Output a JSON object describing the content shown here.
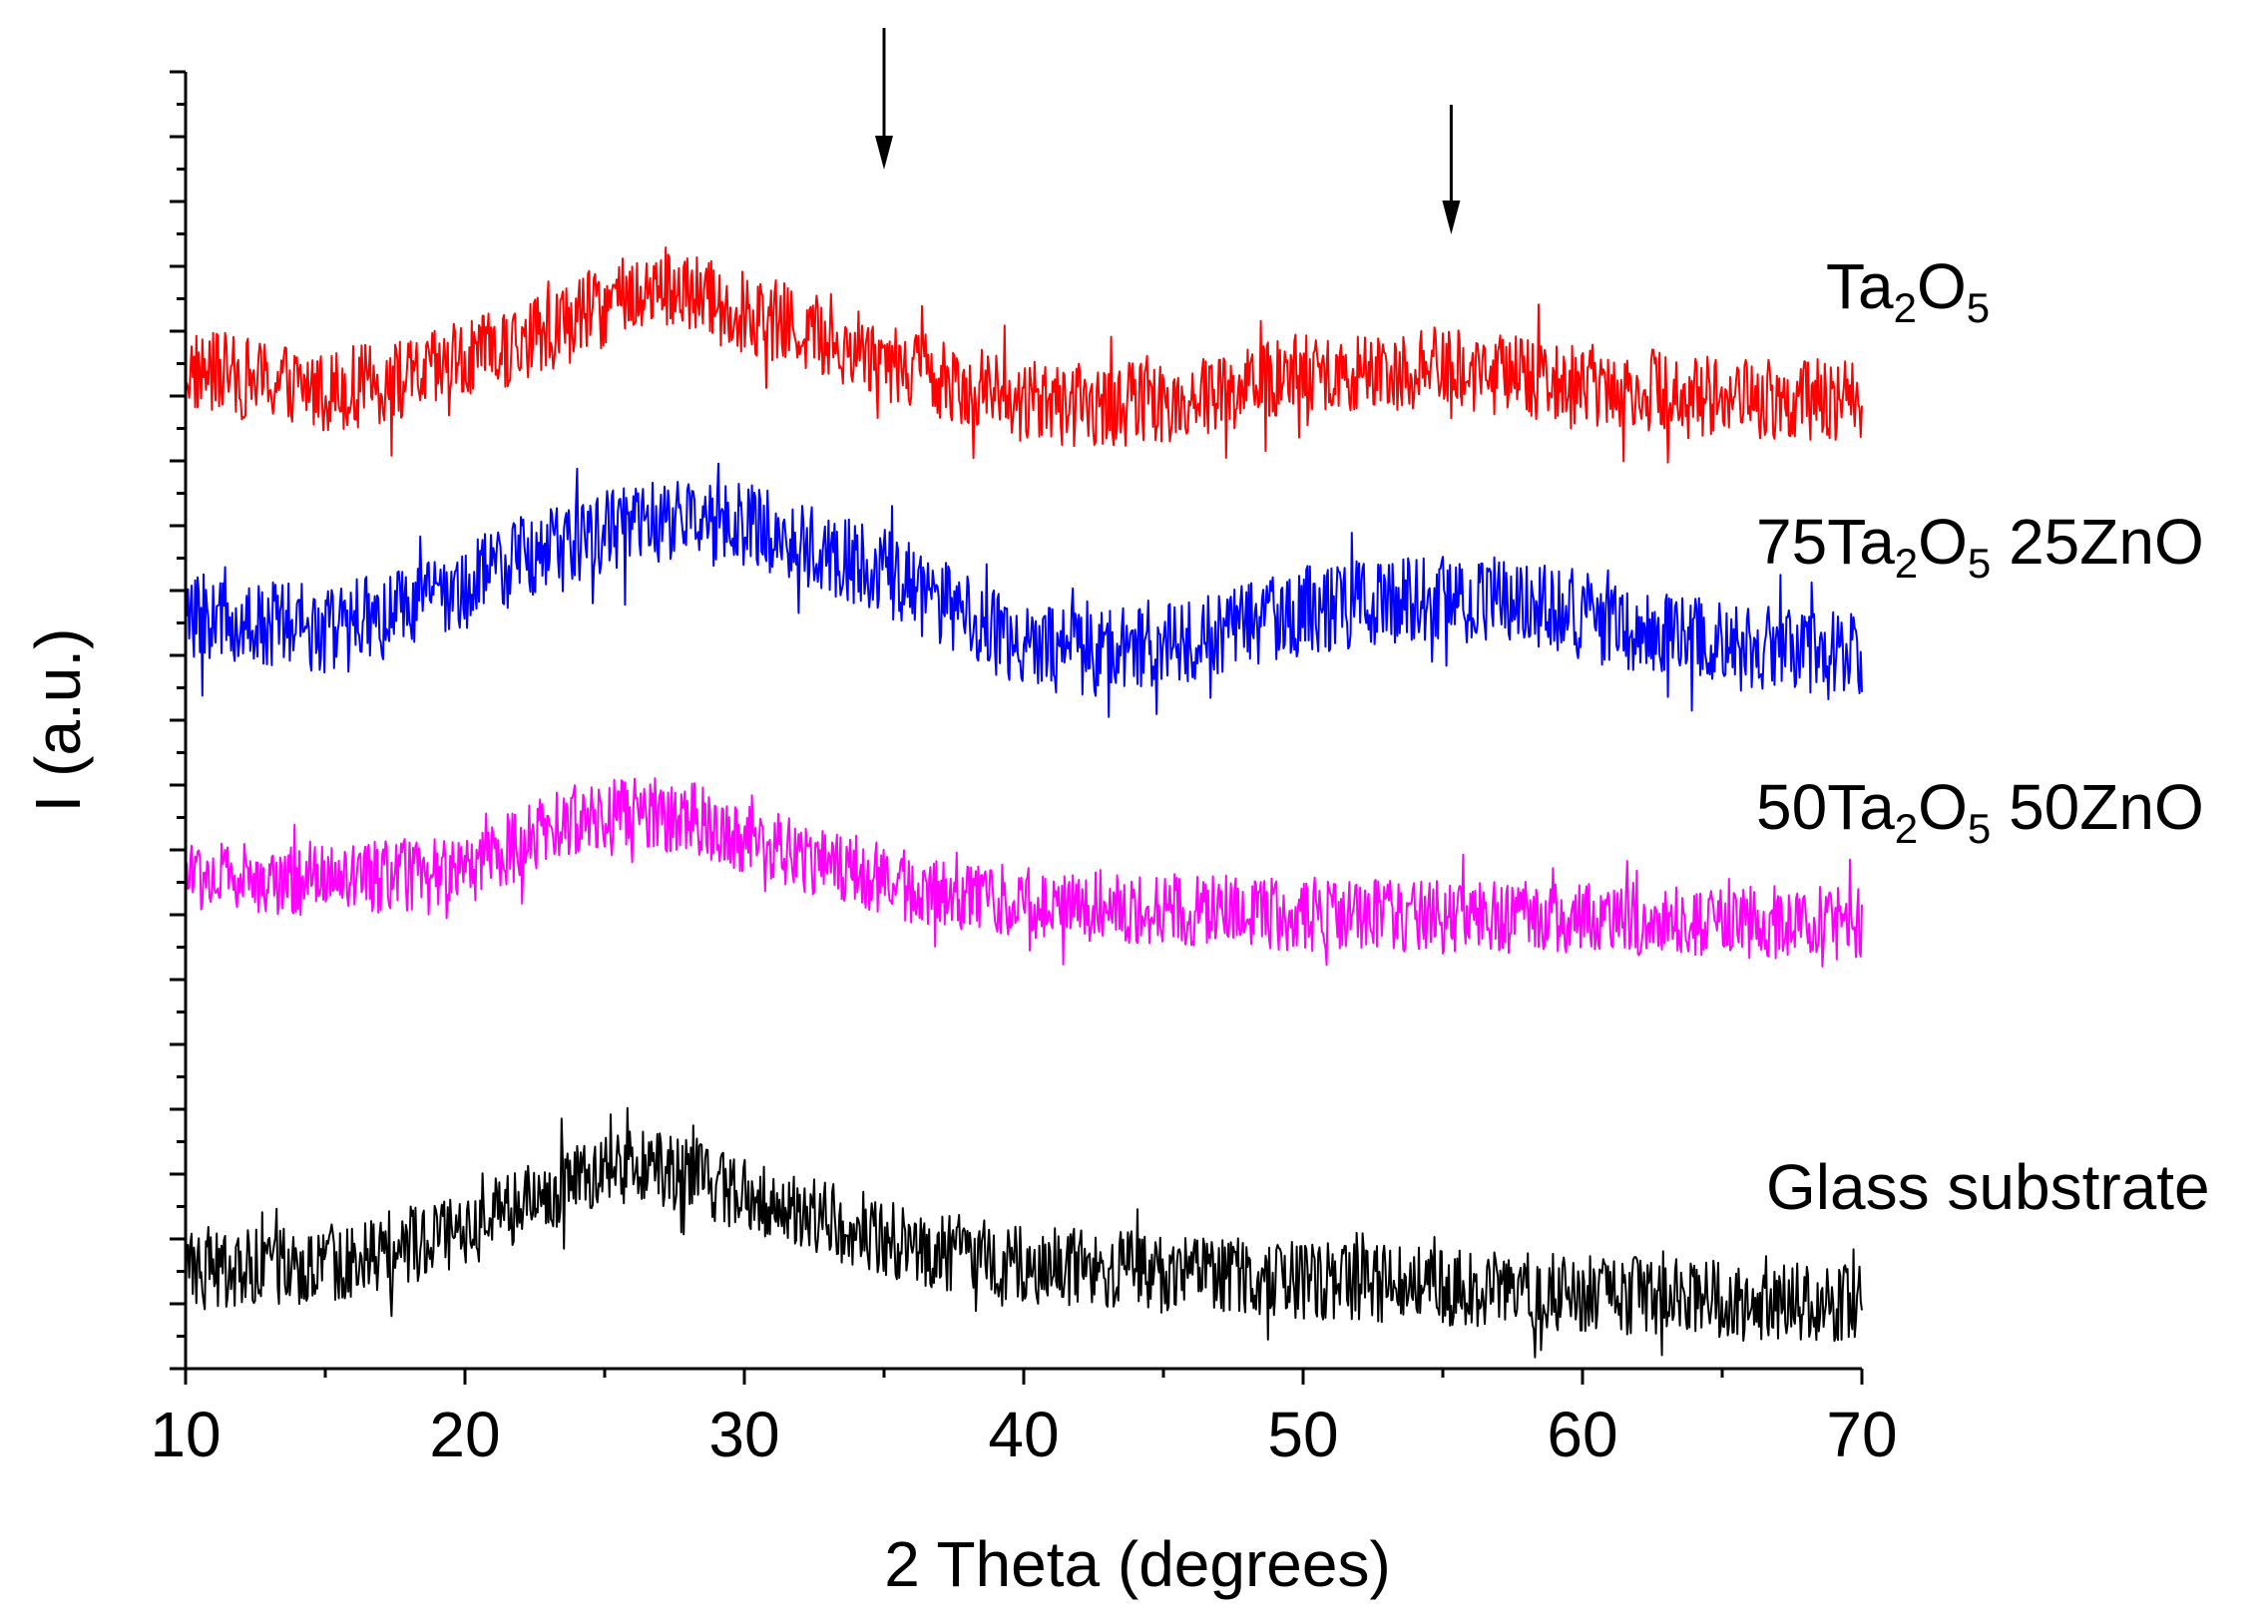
{
  "chart_data": {
    "type": "line",
    "title": "",
    "xlabel": "2 Theta (degrees)",
    "ylabel": "I (a.u.)",
    "xlim": [
      10,
      70
    ],
    "ylim": [
      0,
      100
    ],
    "x_ticks": [
      10,
      20,
      30,
      40,
      50,
      60,
      70
    ],
    "y_ticks_shown": false,
    "grid": false,
    "legend": "none (labels placed to the right of each curve)",
    "series": [
      {
        "name": "Ta2O5",
        "label_parts": [
          [
            "Ta",
            "base"
          ],
          [
            "2",
            "sub"
          ],
          [
            "O",
            "base"
          ],
          [
            "5",
            "sub"
          ]
        ],
        "color": "#ff0000",
        "baseline_offset": 74,
        "noise_amplitude": 3.2,
        "x": [
          10,
          15,
          18,
          22,
          25,
          27,
          30,
          33,
          35,
          37,
          40,
          43,
          46,
          50,
          55,
          60,
          65,
          70
        ],
        "y": [
          3.0,
          1.5,
          2.2,
          5.0,
          8.0,
          9.5,
          7.5,
          5.5,
          4.0,
          2.5,
          0.5,
          0.2,
          0.8,
          2.6,
          3.2,
          2.0,
          1.0,
          0.5
        ],
        "marked_peaks_2theta": [
          35,
          55.3
        ]
      },
      {
        "name": "75Ta2O5 25ZnO",
        "label_parts": [
          [
            "75Ta",
            "base"
          ],
          [
            "2",
            "sub"
          ],
          [
            "O",
            "base"
          ],
          [
            "5",
            "sub"
          ],
          [
            " 25ZnO",
            "base"
          ]
        ],
        "color": "#0000ff",
        "baseline_offset": 54,
        "noise_amplitude": 3.4,
        "x": [
          10,
          15,
          19,
          22,
          25,
          28,
          30,
          33,
          35,
          37,
          40,
          43,
          46,
          50,
          55,
          58,
          60,
          63,
          66,
          70
        ],
        "y": [
          4.0,
          3.0,
          5.0,
          8.5,
          10.5,
          11.5,
          11.0,
          9.0,
          7.5,
          5.0,
          1.5,
          1.2,
          2.5,
          4.5,
          5.5,
          5.0,
          4.0,
          2.5,
          1.5,
          0.8
        ],
        "marked_peaks_2theta": []
      },
      {
        "name": "50Ta2O5 50ZnO",
        "label_parts": [
          [
            "50Ta",
            "base"
          ],
          [
            "2",
            "sub"
          ],
          [
            "O",
            "base"
          ],
          [
            "5",
            "sub"
          ],
          [
            " 50ZnO",
            "base"
          ]
        ],
        "color": "#ff00ff",
        "baseline_offset": 34,
        "noise_amplitude": 2.8,
        "x": [
          10,
          15,
          20,
          23,
          25,
          28,
          30,
          33,
          36,
          40,
          45,
          50,
          55,
          60,
          65,
          70
        ],
        "y": [
          4.0,
          3.5,
          4.5,
          7.5,
          9.0,
          8.5,
          7.0,
          5.0,
          3.0,
          2.0,
          1.5,
          1.0,
          0.8,
          0.8,
          0.5,
          0.3
        ],
        "marked_peaks_2theta": []
      },
      {
        "name": "Glass substrate",
        "label_parts": [
          [
            "Glass substrate",
            "base"
          ]
        ],
        "color": "#000000",
        "baseline_offset": 4,
        "noise_amplitude": 3.0,
        "x": [
          10,
          15,
          19,
          22,
          24,
          26,
          28,
          30,
          33,
          36,
          40,
          45,
          50,
          55,
          60,
          65,
          70
        ],
        "y": [
          3.5,
          4.0,
          6.0,
          8.5,
          10.5,
          11.5,
          11.0,
          9.5,
          7.5,
          5.5,
          4.0,
          3.5,
          2.8,
          2.3,
          1.8,
          1.3,
          1.0
        ],
        "marked_peaks_2theta": []
      }
    ],
    "annotations": [
      {
        "type": "arrow",
        "x": 35,
        "direction": "down",
        "points_to": "Ta2O5"
      },
      {
        "type": "arrow",
        "x": 55.3,
        "direction": "down",
        "points_to": "Ta2O5"
      }
    ]
  }
}
